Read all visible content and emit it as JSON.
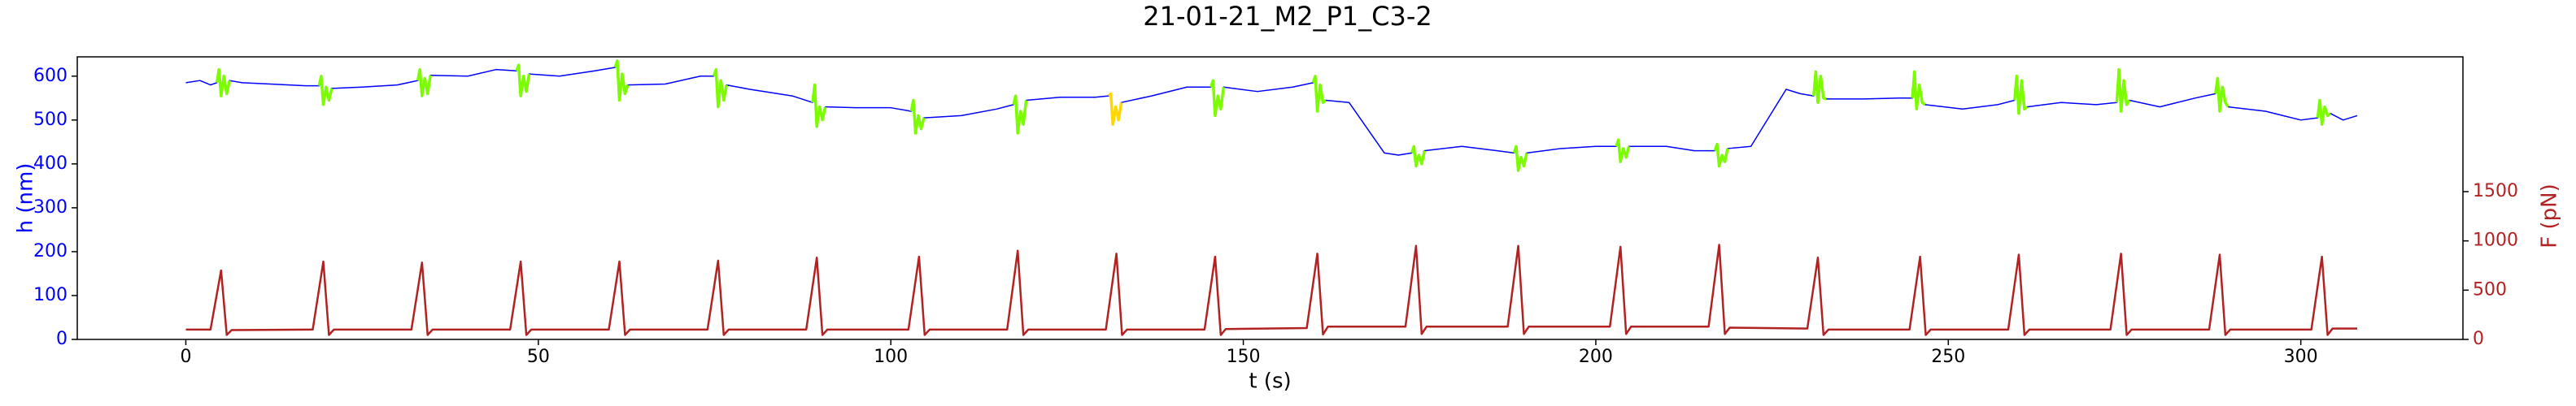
{
  "chart_data": {
    "type": "line",
    "title": "21-01-21_M2_P1_C3-2",
    "xlabel": "t (s)",
    "ylabel": "h (nm)",
    "y2label": "F (pN)",
    "xlim": [
      -15.4,
      323
    ],
    "xticks": [
      0,
      50,
      100,
      150,
      200,
      250,
      300
    ],
    "ylim": [
      0,
      644
    ],
    "yticks": [
      0,
      100,
      200,
      300,
      400,
      500,
      600
    ],
    "y2lim": [
      0,
      2868
    ],
    "y2ticks": [
      0,
      500,
      1000,
      1500
    ],
    "series": [
      {
        "color": "#0000ff",
        "width": 1.5,
        "x": [
          0,
          2,
          3.5,
          4.4,
          4.7,
          5,
          5.4,
          5.8,
          6.2,
          8,
          12,
          17,
          18.9,
          19.2,
          19.5,
          19.9,
          20.3,
          20.7,
          25,
          30,
          32.9,
          33.2,
          33.5,
          33.9,
          34.3,
          34.7,
          40,
          44,
          46.9,
          47.2,
          47.5,
          47.9,
          48.3,
          48.7,
          53,
          58,
          60.9,
          61.2,
          61.5,
          61.9,
          62.3,
          62.7,
          68,
          73,
          74.9,
          75.2,
          75.5,
          75.9,
          76.3,
          76.7,
          80,
          86,
          88.9,
          89.2,
          89.5,
          89.9,
          90.3,
          90.7,
          95,
          100,
          102.9,
          103.2,
          103.5,
          103.9,
          104.3,
          104.7,
          110,
          115,
          117.4,
          117.7,
          118,
          118.4,
          118.8,
          119.2,
          124,
          129,
          130.9,
          131.2,
          131.5,
          131.9,
          132.3,
          132.7,
          137,
          142,
          145.4,
          145.7,
          146,
          146.4,
          146.8,
          147.2,
          152,
          157,
          159.9,
          160.2,
          160.5,
          160.9,
          161.3,
          161.7,
          165,
          170,
          172,
          173.9,
          174.2,
          174.5,
          174.9,
          175.3,
          175.7,
          181,
          186,
          188.4,
          188.7,
          189,
          189.4,
          189.8,
          190.2,
          195,
          200,
          202.9,
          203.2,
          203.5,
          203.9,
          204.3,
          204.7,
          210,
          214,
          216.9,
          217.2,
          217.5,
          217.9,
          218.3,
          218.7,
          222,
          227,
          229,
          230.9,
          231.2,
          231.5,
          231.9,
          232.3,
          232.7,
          238,
          243,
          244.9,
          245.2,
          245.5,
          245.9,
          246.3,
          246.7,
          252,
          257,
          259.4,
          259.7,
          260,
          260.4,
          260.8,
          261.2,
          266,
          271,
          273.9,
          274.2,
          274.5,
          274.9,
          275.3,
          275.7,
          280,
          285,
          287.9,
          288.2,
          288.5,
          288.9,
          289.3,
          289.7,
          295,
          300,
          302.4,
          302.7,
          303,
          303.4,
          303.8,
          304.2,
          306,
          308
        ],
        "values": [
          585,
          590,
          580,
          585,
          615,
          555,
          600,
          560,
          590,
          585,
          582,
          578,
          578,
          600,
          535,
          575,
          545,
          572,
          575,
          580,
          590,
          615,
          555,
          595,
          560,
          602,
          600,
          615,
          612,
          625,
          555,
          600,
          565,
          605,
          600,
          612,
          620,
          635,
          545,
          605,
          560,
          580,
          582,
          600,
          600,
          615,
          530,
          590,
          545,
          580,
          570,
          555,
          540,
          580,
          485,
          530,
          500,
          530,
          528,
          528,
          520,
          545,
          470,
          510,
          480,
          505,
          510,
          525,
          535,
          555,
          470,
          520,
          490,
          545,
          552,
          552,
          555,
          560,
          490,
          530,
          500,
          540,
          555,
          575,
          575,
          590,
          510,
          555,
          525,
          575,
          565,
          575,
          585,
          600,
          520,
          580,
          540,
          545,
          540,
          425,
          420,
          425,
          440,
          395,
          420,
          400,
          430,
          440,
          430,
          425,
          440,
          385,
          415,
          395,
          425,
          435,
          440,
          440,
          455,
          405,
          435,
          415,
          440,
          440,
          430,
          430,
          445,
          395,
          420,
          405,
          435,
          440,
          570,
          560,
          555,
          610,
          540,
          600,
          550,
          548,
          548,
          550,
          550,
          610,
          525,
          580,
          540,
          535,
          525,
          535,
          545,
          600,
          515,
          590,
          525,
          530,
          540,
          535,
          540,
          615,
          520,
          590,
          535,
          545,
          530,
          550,
          560,
          595,
          520,
          575,
          540,
          530,
          520,
          500,
          505,
          545,
          490,
          530,
          510,
          515,
          500,
          510
        ]
      },
      {
        "color": "#7cfc00",
        "width": 3.5,
        "x": [
          4.4,
          4.7,
          5,
          5.4,
          5.8,
          6.2,
          7,
          18.9,
          19.2,
          19.5,
          19.9,
          20.3,
          20.7,
          22,
          32.9,
          33.2,
          33.5,
          33.9,
          34.3,
          34.7,
          36,
          46.9,
          47.2,
          47.5,
          47.9,
          48.3,
          48.7,
          50,
          60.9,
          61.2,
          61.5,
          61.9,
          62.3,
          62.7,
          64,
          74.9,
          75.2,
          75.5,
          75.9,
          76.3,
          76.7,
          78,
          88.9,
          89.2,
          89.5,
          89.9,
          90.3,
          90.7,
          92,
          102.9,
          103.2,
          103.5,
          103.9,
          104.3,
          104.7,
          106,
          117.4,
          117.7,
          118,
          118.4,
          118.8,
          119.2,
          125,
          145.4,
          145.7,
          146,
          146.4,
          146.8,
          147.2,
          149,
          159.9,
          160.2,
          160.5,
          160.9,
          161.3,
          161.7,
          168,
          173.9,
          174.2,
          174.5,
          174.9,
          175.3,
          175.7,
          177,
          188.4,
          188.7,
          189,
          189.4,
          189.8,
          190.2,
          192,
          202.9,
          203.2,
          203.5,
          203.9,
          204.3,
          204.7,
          206,
          216.9,
          217.2,
          217.5,
          217.9,
          218.3,
          218.7,
          224,
          230.9,
          231.2,
          231.5,
          231.9,
          232.3,
          232.7,
          235,
          244.9,
          245.2,
          245.5,
          245.9,
          246.3,
          246.7,
          249,
          259.4,
          259.7,
          260,
          260.4,
          260.8,
          261.2,
          263,
          273.9,
          274.2,
          274.5,
          274.9,
          275.3,
          275.7,
          278,
          287.9,
          288.2,
          288.5,
          288.9,
          289.3,
          289.7,
          292,
          302.4,
          302.7,
          303,
          303.4,
          303.8,
          304.2
        ],
        "values": [
          585,
          615,
          555,
          600,
          560,
          590,
          null,
          578,
          600,
          535,
          575,
          545,
          572,
          null,
          590,
          615,
          555,
          595,
          560,
          602,
          null,
          612,
          625,
          555,
          600,
          565,
          605,
          null,
          620,
          635,
          545,
          605,
          560,
          580,
          null,
          600,
          615,
          530,
          590,
          545,
          580,
          null,
          540,
          580,
          485,
          530,
          500,
          530,
          null,
          520,
          545,
          470,
          510,
          480,
          505,
          null,
          535,
          555,
          470,
          520,
          490,
          545,
          null,
          575,
          590,
          510,
          555,
          525,
          575,
          null,
          585,
          600,
          520,
          580,
          540,
          545,
          null,
          425,
          440,
          395,
          420,
          400,
          430,
          null,
          425,
          440,
          385,
          415,
          395,
          425,
          null,
          440,
          455,
          405,
          435,
          415,
          440,
          null,
          430,
          445,
          395,
          420,
          405,
          435,
          null,
          555,
          610,
          540,
          600,
          550,
          548,
          null,
          550,
          610,
          525,
          580,
          540,
          535,
          null,
          545,
          600,
          515,
          590,
          525,
          530,
          null,
          540,
          615,
          520,
          590,
          535,
          545,
          null,
          560,
          595,
          520,
          575,
          540,
          530,
          null,
          505,
          545,
          490,
          530,
          510,
          515
        ]
      },
      {
        "color": "#ffd700",
        "width": 3.5,
        "x": [
          130.9,
          131.2,
          131.5,
          131.9,
          132.3,
          132.7
        ],
        "values": [
          555,
          560,
          490,
          530,
          500,
          540
        ]
      },
      {
        "color": "#b22222",
        "width": 2.5,
        "axis": "y2",
        "x": [
          0,
          3.5,
          5,
          5.8,
          6.5,
          18,
          19.5,
          20.3,
          21,
          32,
          33.5,
          34.3,
          35,
          46,
          47.5,
          48.3,
          49,
          60,
          61.5,
          62.3,
          63,
          74,
          75.5,
          76.3,
          77,
          88,
          89.5,
          90.3,
          91,
          102.5,
          104,
          104.8,
          105.5,
          116.5,
          118,
          118.8,
          119.5,
          130.5,
          132,
          132.8,
          133.5,
          144.5,
          146,
          146.8,
          147.5,
          159,
          160.5,
          161.3,
          162,
          173,
          174.5,
          175.3,
          176,
          187.5,
          189,
          189.8,
          190.5,
          202,
          203.5,
          204.3,
          205,
          216,
          217.5,
          218.3,
          219,
          230,
          231.5,
          232.3,
          233,
          244.5,
          246,
          246.8,
          247.5,
          258.5,
          260,
          260.8,
          261.5,
          273,
          274.5,
          275.3,
          276,
          287,
          288.5,
          289.3,
          290,
          301.5,
          303,
          303.8,
          304.5,
          308
        ],
        "values": [
          100,
          100,
          700,
          45,
          95,
          100,
          790,
          45,
          100,
          100,
          780,
          45,
          100,
          100,
          790,
          45,
          100,
          100,
          790,
          45,
          100,
          100,
          800,
          45,
          100,
          100,
          830,
          45,
          100,
          100,
          840,
          45,
          100,
          100,
          900,
          45,
          100,
          100,
          870,
          45,
          100,
          100,
          840,
          45,
          105,
          115,
          870,
          50,
          130,
          130,
          950,
          55,
          130,
          130,
          950,
          55,
          130,
          130,
          940,
          55,
          130,
          130,
          960,
          55,
          120,
          110,
          830,
          45,
          100,
          100,
          840,
          45,
          100,
          100,
          860,
          45,
          100,
          100,
          870,
          45,
          100,
          100,
          860,
          45,
          100,
          100,
          840,
          45,
          110,
          110
        ]
      }
    ]
  }
}
